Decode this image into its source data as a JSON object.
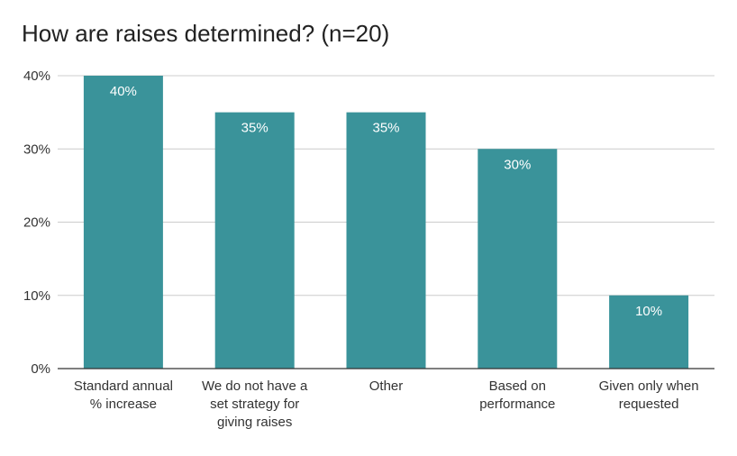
{
  "chart_data": {
    "type": "bar",
    "title": "How are raises determined? (n=20)",
    "categories": [
      [
        "Standard annual",
        "% increase"
      ],
      [
        "We do not have a",
        "set strategy for",
        "giving raises"
      ],
      [
        "Other"
      ],
      [
        "Based on",
        "performance"
      ],
      [
        "Given only when",
        "requested"
      ]
    ],
    "values": [
      40,
      35,
      35,
      30,
      10
    ],
    "data_labels": [
      "40%",
      "35%",
      "35%",
      "30%",
      "10%"
    ],
    "yticks": [
      0,
      10,
      20,
      30,
      40
    ],
    "ytick_labels": [
      "0%",
      "10%",
      "20%",
      "30%",
      "40%"
    ],
    "ylim": [
      0,
      40
    ],
    "grid": true,
    "bar_color": "#3a939a",
    "grid_color": "#cccccc",
    "axis_color": "#333333",
    "xlabel": "",
    "ylabel": ""
  }
}
